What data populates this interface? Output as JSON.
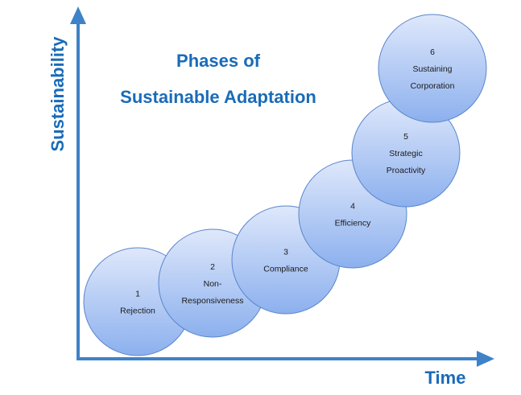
{
  "title": {
    "line1": "Phases of",
    "line2": "Sustainable Adaptation"
  },
  "axes": {
    "y_label": "Sustainability",
    "x_label": "Time",
    "color": "#3f82c8"
  },
  "circle_colors": {
    "fill_light": "#dfe8fb",
    "fill_dark": "#8cb0ee",
    "stroke": "#5a85cc"
  },
  "phases": [
    {
      "number": "1",
      "label_lines": [
        "Rejection"
      ]
    },
    {
      "number": "2",
      "label_lines": [
        "Non-",
        "Responsiveness"
      ]
    },
    {
      "number": "3",
      "label_lines": [
        "Compliance"
      ]
    },
    {
      "number": "4",
      "label_lines": [
        "Efficiency"
      ]
    },
    {
      "number": "5",
      "label_lines": [
        "Strategic",
        "Proactivity"
      ]
    },
    {
      "number": "6",
      "label_lines": [
        "Sustaining",
        "Corporation"
      ]
    }
  ]
}
